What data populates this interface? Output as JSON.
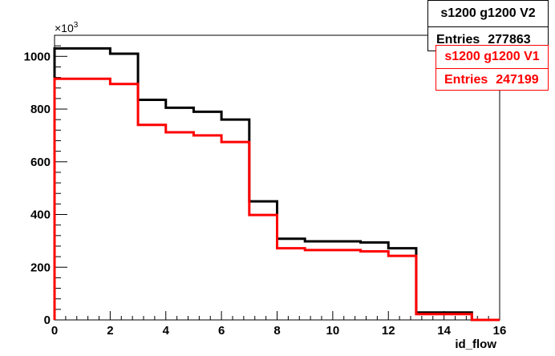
{
  "chart_data": {
    "type": "line",
    "step": true,
    "xlabel": "id_flow",
    "ylabel": "",
    "y_multiplier_label": "×10",
    "y_multiplier_exp": "3",
    "xlim": [
      0,
      16
    ],
    "ylim": [
      0,
      1080
    ],
    "x_ticks": [
      0,
      2,
      4,
      6,
      8,
      10,
      12,
      14,
      16
    ],
    "y_ticks": [
      0,
      200,
      400,
      600,
      800,
      1000
    ],
    "bin_edges": [
      0,
      1,
      2,
      3,
      4,
      5,
      6,
      7,
      8,
      9,
      10,
      11,
      12,
      13,
      14,
      15,
      16
    ],
    "series": [
      {
        "name": "s1200 g1200 V2",
        "entries_label": "Entries",
        "entries": "277863",
        "color": "#000000",
        "values": [
          1030,
          1030,
          1010,
          835,
          805,
          790,
          760,
          450,
          308,
          298,
          298,
          294,
          272,
          28,
          28,
          0
        ]
      },
      {
        "name": "s1200 g1200 V1",
        "entries_label": "Entries",
        "entries": "247199",
        "color": "#ff0000",
        "values": [
          915,
          915,
          895,
          740,
          712,
          700,
          675,
          398,
          272,
          265,
          265,
          260,
          243,
          22,
          22,
          0
        ]
      }
    ]
  }
}
